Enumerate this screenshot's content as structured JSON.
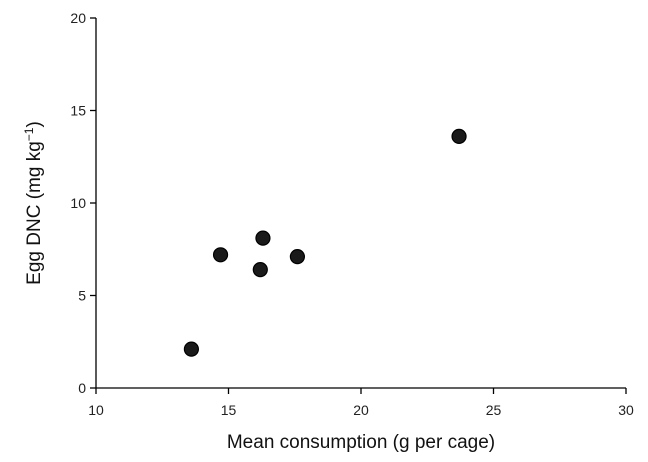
{
  "chart_data": {
    "type": "scatter",
    "title": "",
    "xlabel": "Mean consumption (g per cage)",
    "ylabel_main": "Egg DNC (mg kg",
    "ylabel_sup": "−1",
    "ylabel_tail": ")",
    "xlim": [
      10,
      30
    ],
    "ylim": [
      0,
      20
    ],
    "x_ticks": [
      "10",
      "15",
      "20",
      "25",
      "30"
    ],
    "y_ticks": [
      "0",
      "5",
      "10",
      "15",
      "20"
    ],
    "grid": false,
    "legend": "none",
    "marker_color": "#1a1a1a",
    "points": [
      {
        "x": 13.6,
        "y": 2.1
      },
      {
        "x": 14.7,
        "y": 7.2
      },
      {
        "x": 16.2,
        "y": 6.4
      },
      {
        "x": 16.3,
        "y": 8.1
      },
      {
        "x": 17.6,
        "y": 7.1
      },
      {
        "x": 23.7,
        "y": 13.6
      }
    ]
  }
}
